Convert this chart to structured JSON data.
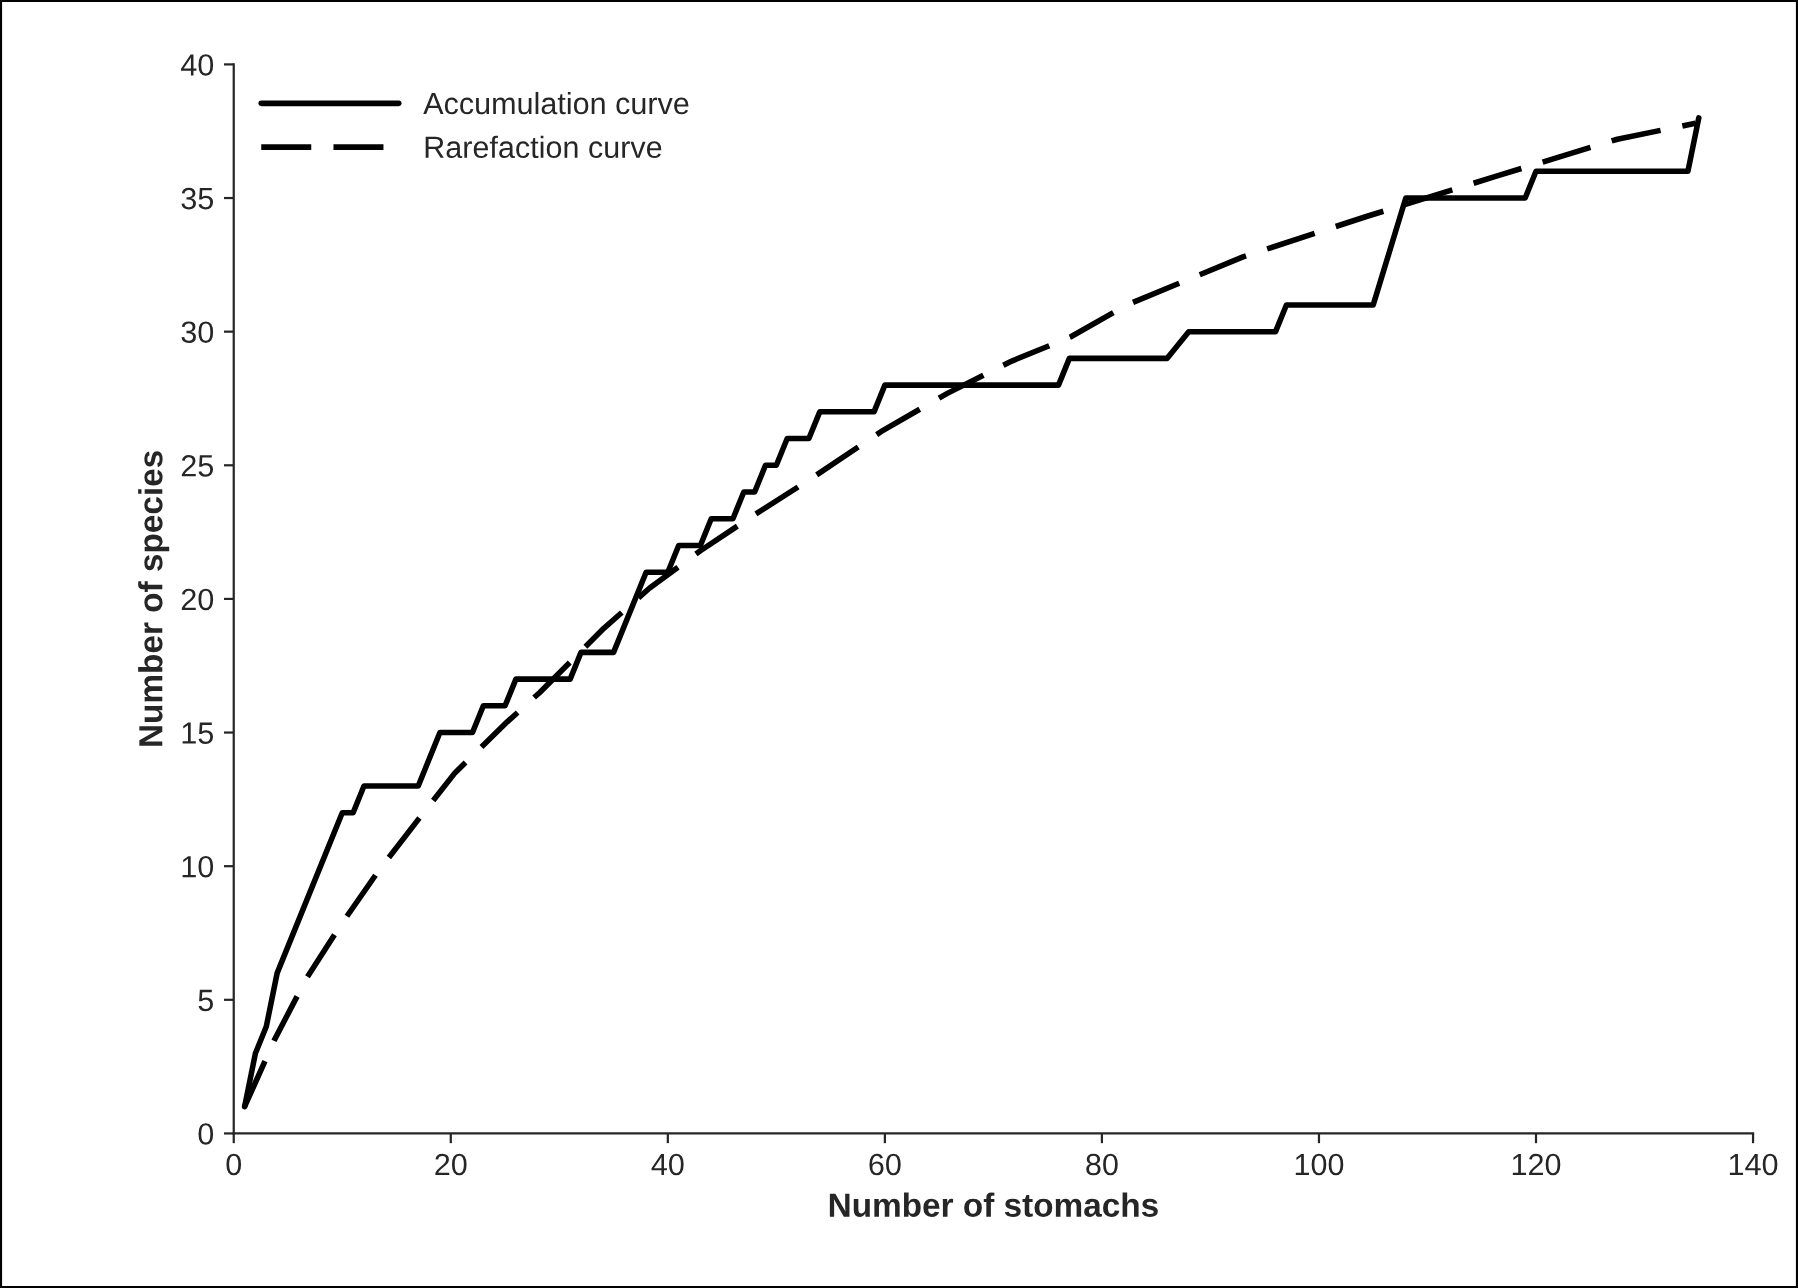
{
  "chart_data": {
    "type": "line",
    "xlabel": "Number of stomachs",
    "ylabel": "Number of species",
    "xlim": [
      0,
      140
    ],
    "xticks": [
      0,
      20,
      40,
      60,
      80,
      100,
      120,
      140
    ],
    "ylim": [
      0,
      40
    ],
    "yticks": [
      0,
      5,
      10,
      15,
      20,
      25,
      30,
      35,
      40
    ],
    "grid": false,
    "legend": "top left",
    "series": [
      {
        "name": "Accumulation curve",
        "color": "#000000",
        "line_style": "solid",
        "x": [
          1,
          2,
          3,
          4,
          7,
          10,
          11,
          12,
          17,
          19,
          22,
          23,
          25,
          26,
          31,
          32,
          35,
          38,
          40,
          41,
          43,
          44,
          46,
          47,
          48,
          49,
          50,
          51,
          53,
          54,
          59,
          60,
          76,
          77,
          86,
          88,
          96,
          97,
          105,
          108,
          119,
          120,
          134,
          135
        ],
        "values": [
          1,
          3,
          4,
          6,
          9,
          12,
          12,
          13,
          13,
          15,
          15,
          16,
          16,
          17,
          17,
          18,
          18,
          21,
          21,
          22,
          22,
          23,
          23,
          24,
          24,
          25,
          25,
          26,
          26,
          27,
          27,
          28,
          28,
          29,
          29,
          30,
          30,
          31,
          31,
          35,
          35,
          36,
          36,
          38
        ]
      },
      {
        "name": "Rarefaction curve",
        "color": "#000000",
        "line_style": "dashed",
        "x": [
          1,
          3.75,
          6.7,
          9.7,
          13.3,
          17.1,
          20.4,
          25.2,
          28.2,
          34.1,
          38.3,
          43,
          47.8,
          53.2,
          59.8,
          65.8,
          71.7,
          77.1,
          82.3,
          93,
          104.3,
          116.2,
          127.5,
          134.7
        ],
        "values": [
          1,
          3.5,
          5.8,
          7.7,
          9.8,
          11.8,
          13.5,
          15.4,
          16.5,
          18.9,
          20.4,
          21.8,
          23.1,
          24.5,
          26.3,
          27.7,
          28.9,
          29.8,
          31,
          32.8,
          34.3,
          35.8,
          37.2,
          37.8
        ]
      }
    ]
  }
}
